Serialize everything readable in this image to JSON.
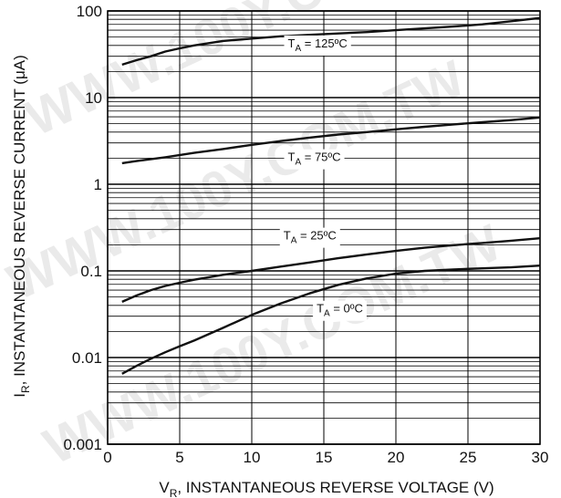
{
  "chart_data": {
    "type": "line",
    "xlabel": "V",
    "xlabel_sub": "R",
    "xlabel_rest": ", INSTANTANEOUS REVERSE VOLTAGE (V)",
    "ylabel": "I",
    "ylabel_sub": "R",
    "ylabel_rest": ", INSTANTANEOUS REVERSE CURRENT (μA)",
    "xlim": [
      0,
      30
    ],
    "ylim": [
      0.001,
      100
    ],
    "y_scale": "log",
    "grid": true,
    "x_ticks": [
      0,
      5,
      10,
      15,
      20,
      25,
      30
    ],
    "x_tick_labels": [
      "0",
      "5",
      "10",
      "15",
      "20",
      "25",
      "30"
    ],
    "y_ticks": [
      0.001,
      0.01,
      0.1,
      1,
      10,
      100
    ],
    "y_tick_labels": [
      "0.001",
      "0.01",
      "0.1",
      "1",
      "10",
      "100"
    ],
    "series": [
      {
        "label_prefix": "T",
        "label_sub": "A",
        "label_suffix": " = 125ºC",
        "label_at": [
          12.5,
          38.0
        ],
        "x": [
          1,
          2,
          3,
          4,
          5,
          6,
          8,
          10,
          12,
          14,
          16,
          18,
          20,
          22,
          24,
          26,
          28,
          30
        ],
        "y": [
          24,
          27,
          30,
          34,
          37,
          40,
          45,
          48,
          51,
          53,
          55,
          57,
          60,
          63,
          66,
          70,
          76,
          83
        ]
      },
      {
        "label_prefix": "T",
        "label_sub": "A",
        "label_suffix": " = 75ºC",
        "label_at": [
          12.5,
          1.85
        ],
        "x": [
          1,
          2,
          4,
          6,
          8,
          10,
          12,
          14,
          16,
          18,
          20,
          22,
          24,
          26,
          28,
          30
        ],
        "y": [
          1.75,
          1.85,
          2.05,
          2.3,
          2.55,
          2.85,
          3.15,
          3.45,
          3.75,
          4.0,
          4.3,
          4.6,
          4.9,
          5.2,
          5.5,
          5.9
        ]
      },
      {
        "label_prefix": "T",
        "label_sub": "A",
        "label_suffix": " = 25ºC",
        "label_at": [
          12.2,
          0.23
        ],
        "x": [
          1,
          2,
          3,
          4,
          5,
          6,
          8,
          10,
          12,
          14,
          16,
          18,
          20,
          22,
          24,
          26,
          28,
          30
        ],
        "y": [
          0.044,
          0.052,
          0.06,
          0.067,
          0.073,
          0.079,
          0.09,
          0.1,
          0.112,
          0.125,
          0.14,
          0.155,
          0.17,
          0.185,
          0.198,
          0.21,
          0.223,
          0.238
        ]
      },
      {
        "label_prefix": "T",
        "label_sub": "A",
        "label_suffix": " = 0ºC",
        "label_at": [
          14.5,
          0.033
        ],
        "x": [
          1,
          2,
          3,
          4,
          5,
          6,
          8,
          10,
          12,
          14,
          16,
          18,
          20,
          22,
          24,
          26,
          28,
          30
        ],
        "y": [
          0.0065,
          0.008,
          0.0097,
          0.0115,
          0.0135,
          0.0157,
          0.022,
          0.031,
          0.042,
          0.055,
          0.069,
          0.082,
          0.093,
          0.1,
          0.104,
          0.107,
          0.11,
          0.115
        ]
      }
    ]
  }
}
